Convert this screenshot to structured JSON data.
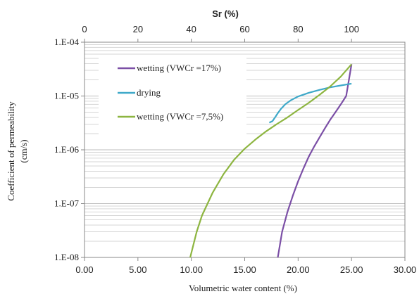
{
  "chart_data": {
    "type": "line",
    "x_axis": {
      "label": "Volumetric water content (%)",
      "range": [
        0,
        30
      ],
      "ticks": [
        "0.00",
        "5.00",
        "10.00",
        "15.00",
        "20.00",
        "25.00",
        "30.00"
      ],
      "tick_values": [
        0,
        5,
        10,
        15,
        20,
        25,
        30
      ]
    },
    "x2_axis": {
      "label": "Sr (%)",
      "range": [
        0,
        120
      ],
      "ticks": [
        "0",
        "20",
        "40",
        "60",
        "80",
        "100"
      ],
      "tick_values": [
        0,
        20,
        40,
        60,
        80,
        100
      ]
    },
    "y_axis": {
      "label_line1": "Coefficient of permeability",
      "label_line2": "(cm/s)",
      "scale": "log",
      "range": [
        1e-08,
        0.0001
      ],
      "ticks": [
        "1.E-08",
        "1.E-07",
        "1.E-06",
        "1.E-05",
        "1.E-04"
      ],
      "tick_values": [
        1e-08,
        1e-07,
        1e-06,
        1e-05,
        0.0001
      ]
    },
    "grid": "horizontal minor log gridlines",
    "legend_position": "top-left inside plot",
    "series": [
      {
        "name": "wetting (VWCr =17%)",
        "color": "#7b4fa6",
        "x": [
          18.1,
          18.5,
          19.0,
          19.5,
          20.0,
          20.5,
          21.0,
          21.5,
          22.0,
          22.5,
          23.0,
          23.5,
          24.0,
          24.5,
          25.0
        ],
        "y": [
          1e-08,
          3e-08,
          7e-08,
          1.4e-07,
          2.6e-07,
          4.5e-07,
          7.5e-07,
          1.15e-06,
          1.7e-06,
          2.5e-06,
          3.6e-06,
          5e-06,
          7e-06,
          1e-05,
          3.9e-05
        ]
      },
      {
        "name": "drying",
        "color": "#3fa9c9",
        "x": [
          17.3,
          17.6,
          17.8,
          18.1,
          18.4,
          18.8,
          19.3,
          20.0,
          21.0,
          22.0,
          23.0,
          24.0,
          25.0
        ],
        "y": [
          3.2e-06,
          3.4e-06,
          3.9e-06,
          4.8e-06,
          5.8e-06,
          7e-06,
          8.3e-06,
          9.8e-06,
          1.15e-05,
          1.3e-05,
          1.45e-05,
          1.57e-05,
          1.7e-05
        ]
      },
      {
        "name": "wetting (VWCr =7,5%)",
        "color": "#8db540",
        "x": [
          9.9,
          10.5,
          11.0,
          12.0,
          13.0,
          14.0,
          15.0,
          16.0,
          17.0,
          18.0,
          19.0,
          20.0,
          21.0,
          22.0,
          23.0,
          24.0,
          25.0
        ],
        "y": [
          1e-08,
          3e-08,
          6e-08,
          1.6e-07,
          3.5e-07,
          6.5e-07,
          1.05e-06,
          1.55e-06,
          2.2e-06,
          3e-06,
          4e-06,
          5.5e-06,
          7.5e-06,
          1.05e-05,
          1.5e-05,
          2.3e-05,
          3.9e-05
        ]
      }
    ]
  }
}
